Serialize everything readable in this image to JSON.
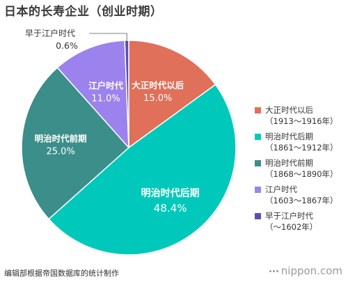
{
  "title": "日本的长寿企业（创业时期）",
  "chart_data": {
    "type": "pie",
    "title": "日本的长寿企业（创业时期）",
    "slices": [
      {
        "name": "大正时代以后",
        "period": "（1913～1916年）",
        "value": 15.0,
        "label": "15.0%",
        "color": "#e07059"
      },
      {
        "name": "明治时代后期",
        "period": "（1861～1912年）",
        "value": 48.4,
        "label": "48.4%",
        "color": "#00c9bb"
      },
      {
        "name": "明治时代前期",
        "period": "（1868～1890年）",
        "value": 25.0,
        "label": "25.0%",
        "color": "#3b8e8a"
      },
      {
        "name": "江户时代",
        "period": "（1603～1867年）",
        "value": 11.0,
        "label": "11.0%",
        "color": "#9b82ed"
      },
      {
        "name": "早于江户时代",
        "period": "（～1602年）",
        "value": 0.6,
        "label": "0.6%",
        "color": "#5650b3"
      }
    ],
    "legend_position": "right"
  },
  "source": "编辑部根据帝国数据库的统计制作",
  "brand": "nippon.com"
}
